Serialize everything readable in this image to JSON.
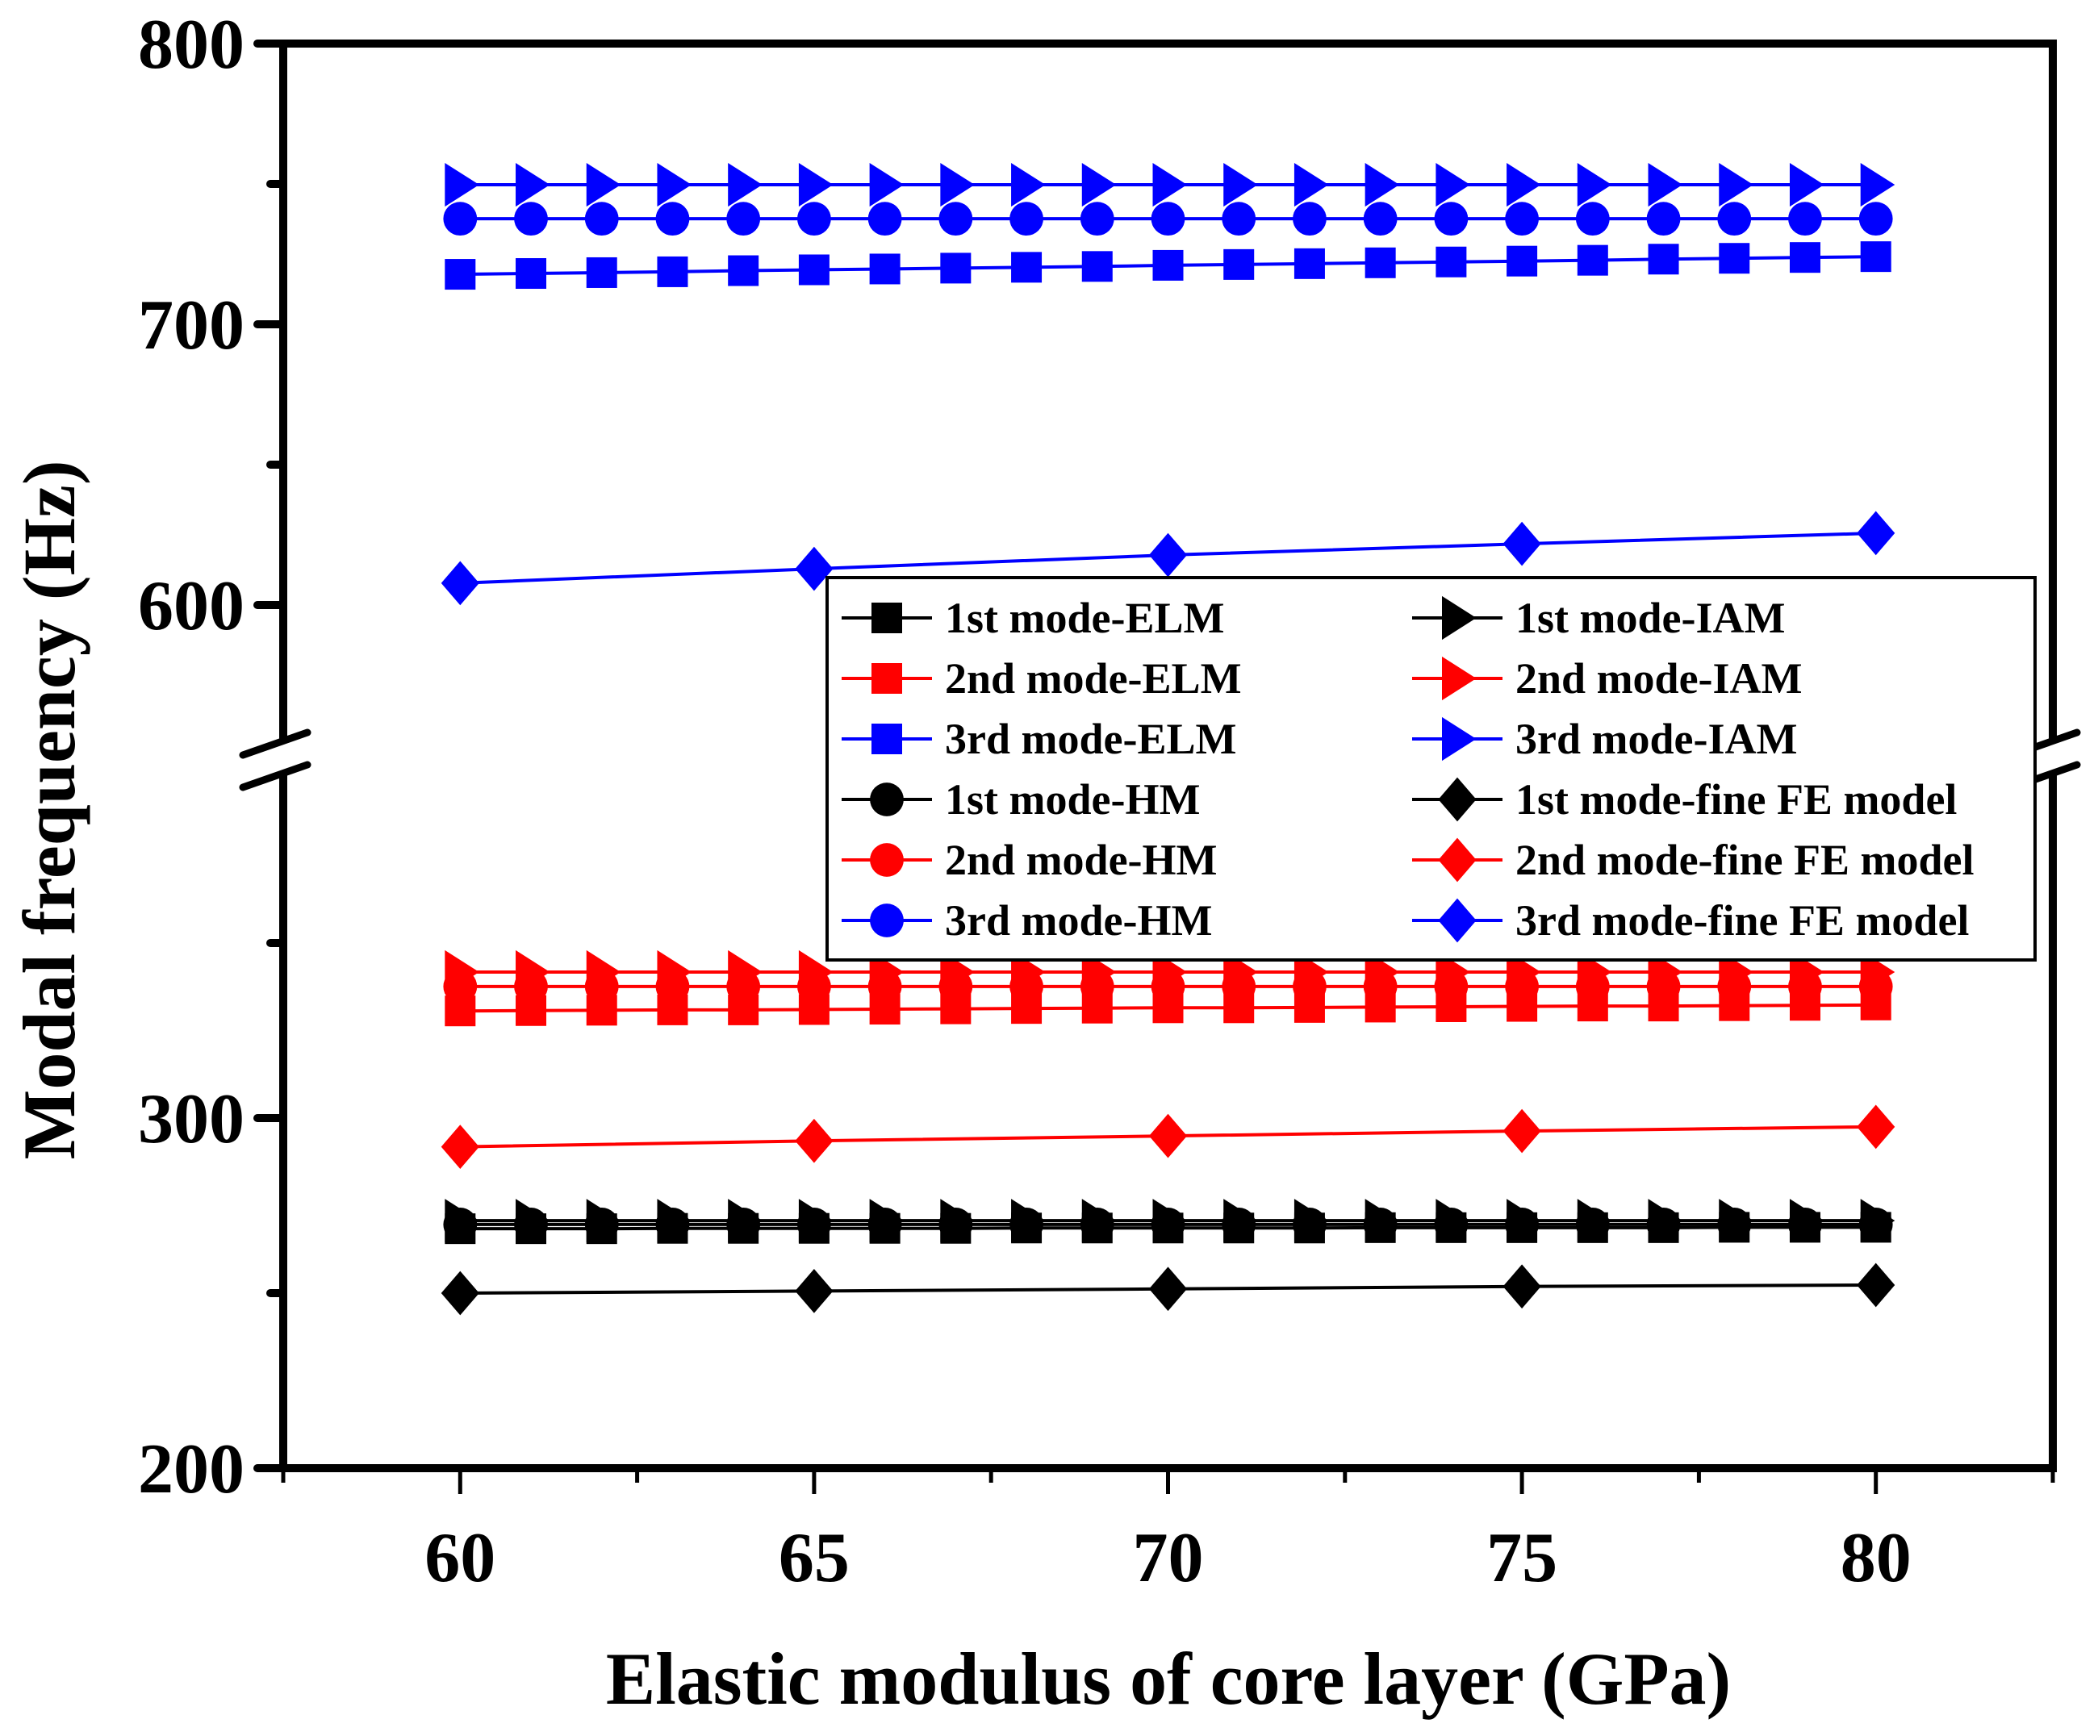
{
  "chart_data": {
    "type": "line",
    "title": "",
    "xlabel": "Elastic modulus of core layer (GPa)",
    "ylabel": "Modal frequency (Hz)",
    "xlim": [
      57.5,
      82.5
    ],
    "x_ticks": [
      60,
      65,
      70,
      75,
      80
    ],
    "x_tick_labels": [
      "60",
      "65",
      "70",
      "75",
      "80"
    ],
    "x_minor_ticks": [
      57.5,
      62.5,
      67.5,
      72.5,
      77.5,
      82.5
    ],
    "y_axis_break": true,
    "y_segments": [
      {
        "name": "lower",
        "ylim": [
          200,
          400
        ],
        "ticks": [
          200,
          300
        ],
        "tick_labels": [
          "200",
          "300"
        ],
        "minor_ticks": [
          250,
          350
        ]
      },
      {
        "name": "upper",
        "ylim": [
          550,
          800
        ],
        "ticks": [
          600,
          700,
          800
        ],
        "tick_labels": [
          "600",
          "700",
          "800"
        ],
        "minor_ticks": [
          650,
          750
        ]
      }
    ],
    "grid": false,
    "legend": {
      "placement": "center-right",
      "columns": 2
    },
    "x_dense": [
      60,
      61,
      62,
      63,
      64,
      65,
      66,
      67,
      68,
      69,
      70,
      71,
      72,
      73,
      74,
      75,
      76,
      77,
      78,
      79,
      80
    ],
    "x_fe": [
      60,
      65,
      70,
      75,
      80
    ],
    "colors": {
      "mode1": "#000000",
      "mode2": "#ff0000",
      "mode3": "#0000ff"
    },
    "series": [
      {
        "name": "1st mode-ELM",
        "color": "#000000",
        "marker": "square",
        "x_key": "x_dense",
        "values": [
          268.4,
          268.4,
          268.4,
          268.5,
          268.5,
          268.5,
          268.5,
          268.5,
          268.6,
          268.6,
          268.6,
          268.6,
          268.6,
          268.7,
          268.7,
          268.7,
          268.7,
          268.7,
          268.8,
          268.8,
          268.8
        ]
      },
      {
        "name": "2nd mode-ELM",
        "color": "#ff0000",
        "marker": "square",
        "x_key": "x_dense",
        "values": [
          330.6,
          330.7,
          330.8,
          330.9,
          330.9,
          331.0,
          331.1,
          331.2,
          331.3,
          331.4,
          331.5,
          331.5,
          331.6,
          331.7,
          331.8,
          331.9,
          332.0,
          332.0,
          332.1,
          332.2,
          332.3
        ]
      },
      {
        "name": "3rd mode-ELM",
        "color": "#0000ff",
        "marker": "square",
        "x_key": "x_dense",
        "values": [
          717.8,
          718.1,
          718.4,
          718.7,
          719.1,
          719.4,
          719.7,
          720.0,
          720.3,
          720.6,
          721.0,
          721.3,
          721.6,
          721.9,
          722.2,
          722.5,
          722.8,
          723.2,
          723.5,
          723.8,
          724.1
        ]
      },
      {
        "name": "1st mode-HM",
        "color": "#000000",
        "marker": "circle",
        "x_key": "x_dense",
        "values": [
          269.6,
          269.6,
          269.6,
          269.6,
          269.6,
          269.6,
          269.6,
          269.6,
          269.6,
          269.6,
          269.6,
          269.6,
          269.6,
          269.6,
          269.6,
          269.6,
          269.6,
          269.6,
          269.6,
          269.6,
          269.6
        ]
      },
      {
        "name": "2nd mode-HM",
        "color": "#ff0000",
        "marker": "circle",
        "x_key": "x_dense",
        "values": [
          337.6,
          337.6,
          337.6,
          337.6,
          337.6,
          337.6,
          337.6,
          337.6,
          337.6,
          337.6,
          337.6,
          337.6,
          337.6,
          337.6,
          337.6,
          337.6,
          337.6,
          337.6,
          337.6,
          337.6,
          337.6
        ]
      },
      {
        "name": "3rd mode-HM",
        "color": "#0000ff",
        "marker": "circle",
        "x_key": "x_dense",
        "values": [
          737.6,
          737.6,
          737.6,
          737.6,
          737.6,
          737.6,
          737.6,
          737.6,
          737.6,
          737.6,
          737.6,
          737.6,
          737.6,
          737.6,
          737.6,
          737.6,
          737.6,
          737.6,
          737.6,
          737.6,
          737.6
        ]
      },
      {
        "name": "1st mode-IAM",
        "color": "#000000",
        "marker": "triangle-right",
        "x_key": "x_dense",
        "values": [
          270.7,
          270.7,
          270.7,
          270.7,
          270.7,
          270.7,
          270.7,
          270.7,
          270.7,
          270.7,
          270.7,
          270.7,
          270.7,
          270.7,
          270.7,
          270.7,
          270.7,
          270.7,
          270.7,
          270.7,
          270.7
        ]
      },
      {
        "name": "2nd mode-IAM",
        "color": "#ff0000",
        "marker": "triangle-right",
        "x_key": "x_dense",
        "values": [
          341.7,
          341.7,
          341.7,
          341.7,
          341.7,
          341.7,
          341.7,
          341.7,
          341.7,
          341.7,
          341.7,
          341.7,
          341.7,
          341.7,
          341.7,
          341.7,
          341.7,
          341.7,
          341.7,
          341.7,
          341.7
        ]
      },
      {
        "name": "3rd mode-IAM",
        "color": "#0000ff",
        "marker": "triangle-right",
        "x_key": "x_dense",
        "values": [
          749.7,
          749.7,
          749.7,
          749.7,
          749.7,
          749.7,
          749.7,
          749.7,
          749.7,
          749.7,
          749.7,
          749.7,
          749.7,
          749.7,
          749.7,
          749.7,
          749.7,
          749.7,
          749.7,
          749.7,
          749.7
        ]
      },
      {
        "name": "1st mode-fine FE model",
        "color": "#000000",
        "marker": "diamond",
        "x_key": "x_fe",
        "values": [
          250.0,
          250.6,
          251.2,
          251.9,
          252.3
        ]
      },
      {
        "name": "2nd mode-fine FE model",
        "color": "#ff0000",
        "marker": "diamond",
        "x_key": "x_fe",
        "values": [
          291.8,
          293.5,
          294.9,
          296.3,
          297.5
        ]
      },
      {
        "name": "3rd mode-fine FE model",
        "color": "#0000ff",
        "marker": "diamond",
        "x_key": "x_fe",
        "values": [
          607.8,
          612.9,
          617.8,
          621.8,
          625.6
        ]
      }
    ],
    "legend_order": [
      [
        "1st mode-ELM",
        "1st mode-IAM"
      ],
      [
        "2nd mode-ELM",
        "2nd mode-IAM"
      ],
      [
        "3rd mode-ELM",
        "3rd mode-IAM"
      ],
      [
        "1st mode-HM",
        "1st mode-fine FE model"
      ],
      [
        "2nd mode-HM",
        "2nd mode-fine FE model"
      ],
      [
        "3rd mode-HM",
        "3rd mode-fine FE model"
      ]
    ]
  }
}
